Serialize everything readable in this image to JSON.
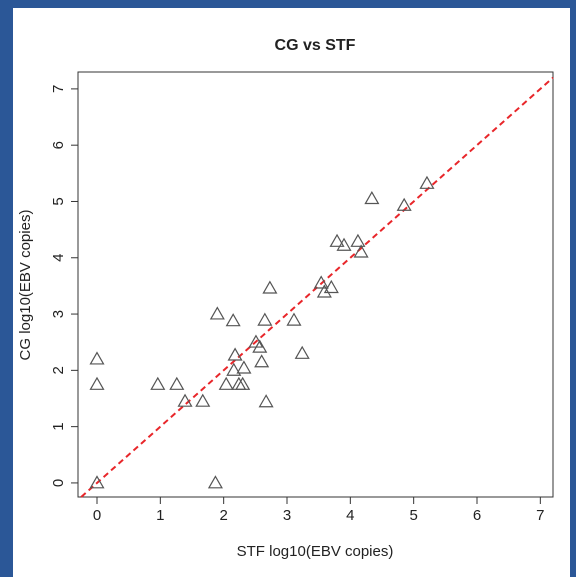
{
  "chart_data": {
    "type": "scatter",
    "title": "CG vs STF",
    "x_label": "STF  log10(EBV copies)",
    "y_label": "CG  log10(EBV copies)",
    "x": [
      0,
      0,
      0,
      0.96,
      1.26,
      1.39,
      1.67,
      1.87,
      1.9,
      2.04,
      2.15,
      2.18,
      2.16,
      2.24,
      2.32,
      2.3,
      2.51,
      2.57,
      2.6,
      2.65,
      2.67,
      2.73,
      3.11,
      3.24,
      3.54,
      3.59,
      3.7,
      3.79,
      3.9,
      4.12,
      4.17,
      4.34,
      4.85,
      5.21
    ],
    "values": [
      0,
      2.2,
      1.75,
      1.75,
      1.75,
      1.45,
      1.45,
      0,
      3.0,
      1.75,
      2.88,
      2.27,
      2.0,
      1.75,
      2.04,
      1.75,
      2.5,
      2.41,
      2.15,
      2.89,
      1.44,
      3.46,
      2.89,
      2.3,
      3.55,
      3.39,
      3.47,
      4.29,
      4.22,
      4.29,
      4.1,
      5.05,
      4.93,
      5.32
    ],
    "color": "#555555",
    "reference_line_color": "#e8262a",
    "xlim": [
      -0.3,
      7.2
    ],
    "ylim": [
      -0.25,
      7.3
    ],
    "xticks": [
      0,
      1,
      2,
      3,
      4,
      5,
      6,
      7
    ],
    "yticks": [
      0,
      1,
      2,
      3,
      4,
      5,
      6,
      7
    ]
  }
}
